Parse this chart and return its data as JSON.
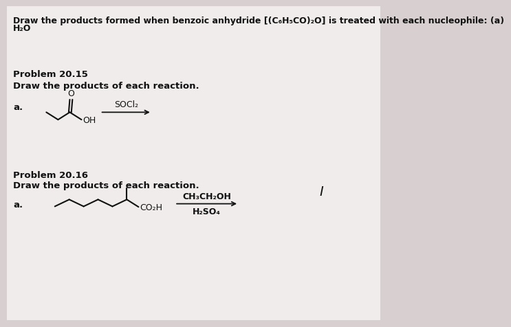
{
  "bg_color": "#d8d0d0",
  "inner_bg": "#f0ecec",
  "title_line1": "Draw the products formed when benzoic anhydride [(C₆H₅CO)₂O] is treated with each nucleophile: (a)",
  "title_line2": "H₂O",
  "problem1_header": "Problem 20.15",
  "problem1_subheader": "Draw the products of each reaction.",
  "problem1_label": "a.",
  "problem1_reagent": "SOCl₂",
  "problem2_header": "Problem 20.16",
  "problem2_subheader": "Draw the products of each reaction.",
  "problem2_label": "a.",
  "problem2_reagent_line1": "CH₃CH₂OH",
  "problem2_reagent_line2": "H₂SO₄",
  "text_color": "#111111",
  "structure_color": "#111111",
  "title_fontsize": 9.0,
  "header_fontsize": 9.5,
  "label_fontsize": 9.5,
  "struct_fontsize": 9.0,
  "reagent_fontsize": 9.0
}
